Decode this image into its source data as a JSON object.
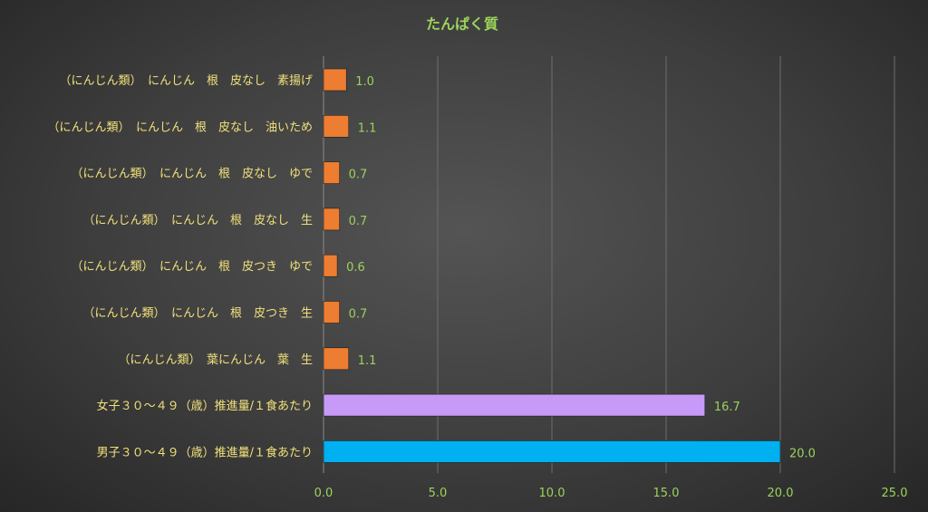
{
  "chart_data": {
    "type": "bar",
    "orientation": "horizontal",
    "title": "たんぱく質",
    "xlabel": "",
    "ylabel": "",
    "xlim": [
      0,
      25
    ],
    "ticks": [
      "0.0",
      "5.0",
      "10.0",
      "15.0",
      "20.0",
      "25.0"
    ],
    "grid": true,
    "legend": "none",
    "categories": [
      "（にんじん類）　にんじん　根　皮なし　素揚げ",
      "（にんじん類）　にんじん　根　皮なし　油いため",
      "（にんじん類）　にんじん　根　皮なし　ゆで",
      "（にんじん類）　にんじん　根　皮なし　生",
      "（にんじん類）　にんじん　根　皮つき　ゆで",
      "（にんじん類）　にんじん　根　皮つき　生",
      "（にんじん類）　葉にんじん　葉　生",
      "女子３０～４９（歳）推進量/１食あたり",
      "男子３０～４９（歳）推進量/１食あたり"
    ],
    "values": [
      1.0,
      1.1,
      0.7,
      0.7,
      0.6,
      0.7,
      1.1,
      16.7,
      20.0
    ],
    "value_labels": [
      "1.0",
      "1.1",
      "0.7",
      "0.7",
      "0.6",
      "0.7",
      "1.1",
      "16.7",
      "20.0"
    ],
    "colors": [
      "#ed7d31",
      "#ed7d31",
      "#ed7d31",
      "#ed7d31",
      "#ed7d31",
      "#ed7d31",
      "#ed7d31",
      "#c79af7",
      "#00b0f0"
    ]
  }
}
